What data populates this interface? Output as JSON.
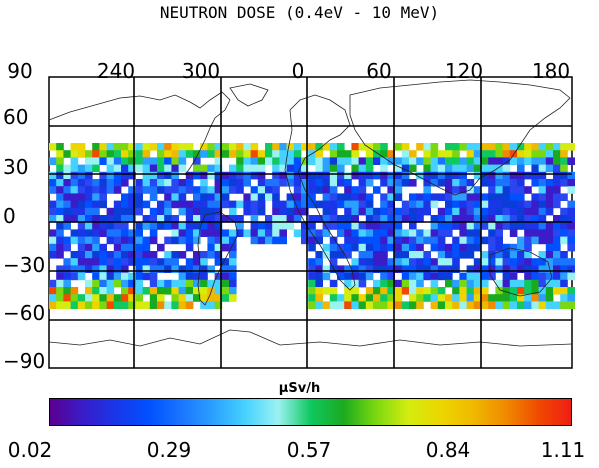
{
  "title": "NEUTRON DOSE (0.4eV - 10 MeV)",
  "longitude_labels": [
    "90",
    "240",
    "300",
    "0",
    "60",
    "120",
    "180"
  ],
  "latitude_labels": [
    "60",
    "30",
    "0",
    "−30",
    "−60",
    "−90"
  ],
  "colorbar": {
    "unit": "μSv/h",
    "tick_labels": [
      "0.02",
      "0.29",
      "0.57",
      "0.84",
      "1.11"
    ],
    "min": 0.02,
    "max": 1.11,
    "colors": [
      "#5a0090",
      "#3a1cc8",
      "#1a36e8",
      "#0050ff",
      "#1a74ff",
      "#2aa0ff",
      "#46d2ff",
      "#9af2f2",
      "#10c860",
      "#1aaa20",
      "#7ad810",
      "#d4ec10",
      "#ecd600",
      "#f0b800",
      "#f08a00",
      "#f04a00",
      "#f01e14"
    ]
  },
  "data_coverage": {
    "latitude_range": [
      -50,
      50
    ],
    "note": "Dense blue (~0.2 μSv/h) in the tropics with green-yellow bands near ±40° latitude"
  },
  "style_colors": {
    "grid": "#000000",
    "coast": "#222222",
    "background": "#ffffff"
  }
}
